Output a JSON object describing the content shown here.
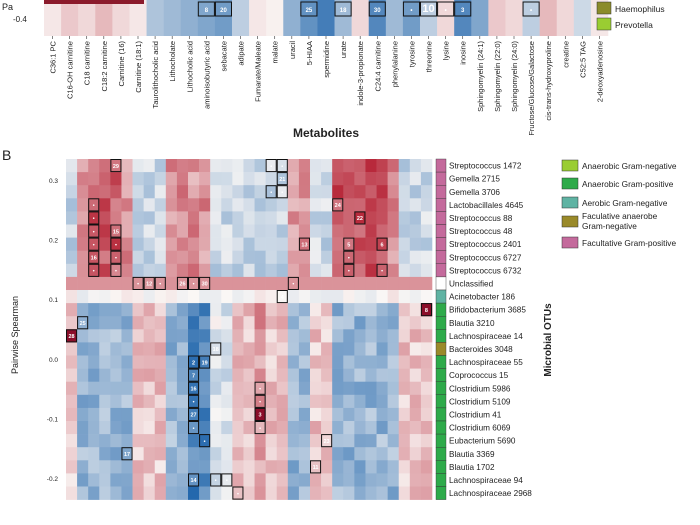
{
  "chart_data": [
    {
      "type": "heatmap",
      "panel_label": "",
      "colorbar": {
        "label": "Pa",
        "tick": "-0.4"
      },
      "xlabel": "Metabolites",
      "x_categories": [
        "C36:1 PC",
        "C16-OH carnitine",
        "C18 carnitine",
        "C18:2 carnitine",
        "Carnitine (16)",
        "Carnitine (18:1)",
        "Taurolithocholic acid",
        "Lithocholate",
        "Lithocholic acid",
        "aminoisobutyric acid",
        "sebacate",
        "adipate",
        "Fumarate/Maleate",
        "malate",
        "uracil",
        "5-HIAA",
        "spermidine",
        "urate",
        "indole-3-propionate",
        "C24:4 carnitine",
        "phenylalanine",
        "tyrosine",
        "threonine",
        "lysine",
        "inosine",
        "Sphingomyelin (24:1)",
        "Sphingomyelin (22:0)",
        "Sphingomyelin (24:0)",
        "Fructose/Glucose/Galactose",
        "cis-trans-hydroxyproline",
        "creatine",
        "C52:5 TAG",
        "2-deoxyadenosine"
      ],
      "bottom_row_values": [
        0.05,
        0.15,
        0.1,
        0.2,
        0.1,
        0.05,
        -0.25,
        -0.3,
        -0.35,
        -0.4,
        -0.45,
        -0.2,
        0.05,
        0.02,
        -0.35,
        -0.5,
        -0.6,
        -0.3,
        0.1,
        -0.55,
        -0.3,
        -0.45,
        -0.2,
        0.1,
        -0.55,
        -0.4,
        0.15,
        0.1,
        -0.2,
        0.2,
        0.1,
        -0.15,
        0.05
      ],
      "cell_labels": [
        {
          "col": 9,
          "text": "8"
        },
        {
          "col": 10,
          "text": "20"
        },
        {
          "col": 15,
          "text": "25"
        },
        {
          "col": 17,
          "text": "18"
        },
        {
          "col": 19,
          "text": "30"
        },
        {
          "col": 24,
          "text": "3"
        },
        {
          "col": 22,
          "text": "10"
        },
        {
          "col": 21,
          "text": "•"
        },
        {
          "col": 23,
          "text": "•"
        },
        {
          "col": 28,
          "text": "•"
        }
      ],
      "legend": [
        "Haemophilus",
        "Prevotella"
      ],
      "legend_colors": [
        "#8b8b2b",
        "#9acd32"
      ]
    },
    {
      "type": "heatmap",
      "panel_label": "B",
      "ylabel": "Pairwise Spearman",
      "y_ticks": [
        "0.3",
        "0.2",
        "0.1",
        "0.0",
        "-0.1",
        "-0.2"
      ],
      "y2label": "Microbial OTUs",
      "rows": [
        {
          "name": "Streptococcus 1472",
          "group": "Facultative Gram-positive"
        },
        {
          "name": "Gemella 2715",
          "group": "Facultative Gram-positive"
        },
        {
          "name": "Gemella 3706",
          "group": "Facultative Gram-positive"
        },
        {
          "name": "Lactobacillales 4645",
          "group": "Facultative Gram-positive"
        },
        {
          "name": "Streptococcus 88",
          "group": "Facultative Gram-positive"
        },
        {
          "name": "Streptococcus 48",
          "group": "Facultative Gram-positive"
        },
        {
          "name": "Streptococcus 2401",
          "group": "Facultative Gram-positive"
        },
        {
          "name": "Streptococcus 6727",
          "group": "Facultative Gram-positive"
        },
        {
          "name": "Streptococcus 6732",
          "group": "Facultative Gram-positive"
        },
        {
          "name": "Unclassified",
          "group": "Unclassified"
        },
        {
          "name": "Acinetobacter 186",
          "group": "Aerobic Gram-negative"
        },
        {
          "name": "Bifidobacterium 3685",
          "group": "Anaerobic Gram-positive"
        },
        {
          "name": "Blautia 3210",
          "group": "Anaerobic Gram-positive"
        },
        {
          "name": "Lachnospiraceae 14",
          "group": "Anaerobic Gram-positive"
        },
        {
          "name": "Bacteroides 3048",
          "group": "Facultative anaerobe Gram-negative"
        },
        {
          "name": "Lachnospiraceae 55",
          "group": "Anaerobic Gram-positive"
        },
        {
          "name": "Coprococcus 15",
          "group": "Anaerobic Gram-positive"
        },
        {
          "name": "Clostridium 5986",
          "group": "Anaerobic Gram-positive"
        },
        {
          "name": "Clostridium 5109",
          "group": "Anaerobic Gram-positive"
        },
        {
          "name": "Clostridium 41",
          "group": "Anaerobic Gram-positive"
        },
        {
          "name": "Clostridium 6069",
          "group": "Anaerobic Gram-positive"
        },
        {
          "name": "Eubacterium 5690",
          "group": "Anaerobic Gram-positive"
        },
        {
          "name": "Blautia 3369",
          "group": "Anaerobic Gram-positive"
        },
        {
          "name": "Blautia 1702",
          "group": "Anaerobic Gram-positive"
        },
        {
          "name": "Lachnospiraceae 94",
          "group": "Anaerobic Gram-positive"
        },
        {
          "name": "Lachnospiraceae 2968",
          "group": "Anaerobic Gram-positive"
        }
      ],
      "legend": [
        {
          "label": "Anaerobic Gram-negative",
          "color": "#9acd32"
        },
        {
          "label": "Anaerobic Gram-positive",
          "color": "#2eaa4a"
        },
        {
          "label": "Aerobic Gram-negative",
          "color": "#5fb3a3"
        },
        {
          "label": "Facultative anaerobe Gram-negative",
          "color": "#9a8a2a"
        },
        {
          "label": "Facultative Gram-positive",
          "color": "#c46a9c"
        }
      ],
      "group_colors": {
        "Facultative Gram-positive": "#c46a9c",
        "Unclassified": "#ffffff",
        "Aerobic Gram-negative": "#5fb3a3",
        "Anaerobic Gram-positive": "#2eaa4a",
        "Facultative anaerobe Gram-negative": "#9a8a2a"
      },
      "cell_labels": [
        {
          "r": 0,
          "c": 4,
          "t": "29"
        },
        {
          "r": 0,
          "c": 18,
          "t": "•"
        },
        {
          "r": 0,
          "c": 19,
          "t": "•"
        },
        {
          "r": 1,
          "c": 19,
          "t": "21"
        },
        {
          "r": 2,
          "c": 18,
          "t": "•"
        },
        {
          "r": 2,
          "c": 19,
          "t": "•"
        },
        {
          "r": 3,
          "c": 24,
          "t": "24"
        },
        {
          "r": 3,
          "c": 2,
          "t": "•"
        },
        {
          "r": 4,
          "c": 2,
          "t": "•"
        },
        {
          "r": 4,
          "c": 26,
          "t": "22"
        },
        {
          "r": 5,
          "c": 2,
          "t": "•"
        },
        {
          "r": 5,
          "c": 4,
          "t": "15"
        },
        {
          "r": 6,
          "c": 2,
          "t": "•"
        },
        {
          "r": 6,
          "c": 4,
          "t": "•"
        },
        {
          "r": 6,
          "c": 21,
          "t": "13"
        },
        {
          "r": 6,
          "c": 25,
          "t": "5"
        },
        {
          "r": 6,
          "c": 28,
          "t": "6"
        },
        {
          "r": 7,
          "c": 2,
          "t": "16"
        },
        {
          "r": 7,
          "c": 4,
          "t": "•"
        },
        {
          "r": 7,
          "c": 25,
          "t": "•"
        },
        {
          "r": 8,
          "c": 2,
          "t": "•"
        },
        {
          "r": 8,
          "c": 4,
          "t": "•"
        },
        {
          "r": 8,
          "c": 25,
          "t": "•"
        },
        {
          "r": 8,
          "c": 28,
          "t": "•"
        },
        {
          "r": 9,
          "c": 6,
          "t": "•"
        },
        {
          "r": 9,
          "c": 7,
          "t": "12"
        },
        {
          "r": 9,
          "c": 8,
          "t": "•"
        },
        {
          "r": 9,
          "c": 10,
          "t": "26"
        },
        {
          "r": 9,
          "c": 11,
          "t": "•"
        },
        {
          "r": 9,
          "c": 12,
          "t": "30"
        },
        {
          "r": 9,
          "c": 20,
          "t": "•"
        },
        {
          "r": 10,
          "c": 19,
          "t": "4"
        },
        {
          "r": 11,
          "c": 32,
          "t": "8"
        },
        {
          "r": 12,
          "c": 1,
          "t": "25"
        },
        {
          "r": 13,
          "c": 0,
          "t": "28"
        },
        {
          "r": 14,
          "c": 13,
          "t": "18"
        },
        {
          "r": 15,
          "c": 11,
          "t": "2"
        },
        {
          "r": 15,
          "c": 12,
          "t": "19"
        },
        {
          "r": 16,
          "c": 11,
          "t": "7"
        },
        {
          "r": 17,
          "c": 11,
          "t": "16"
        },
        {
          "r": 17,
          "c": 17,
          "t": "•"
        },
        {
          "r": 18,
          "c": 11,
          "t": "•"
        },
        {
          "r": 18,
          "c": 17,
          "t": "•"
        },
        {
          "r": 19,
          "c": 11,
          "t": "27"
        },
        {
          "r": 19,
          "c": 17,
          "t": "3"
        },
        {
          "r": 20,
          "c": 11,
          "t": "•"
        },
        {
          "r": 20,
          "c": 17,
          "t": "•"
        },
        {
          "r": 21,
          "c": 12,
          "t": "•"
        },
        {
          "r": 21,
          "c": 23,
          "t": "23"
        },
        {
          "r": 22,
          "c": 5,
          "t": "17"
        },
        {
          "r": 23,
          "c": 22,
          "t": "11"
        },
        {
          "r": 24,
          "c": 11,
          "t": "14"
        },
        {
          "r": 24,
          "c": 13,
          "t": "•"
        },
        {
          "r": 24,
          "c": 14,
          "t": "•"
        },
        {
          "r": 25,
          "c": 15,
          "t": "•"
        }
      ]
    }
  ]
}
